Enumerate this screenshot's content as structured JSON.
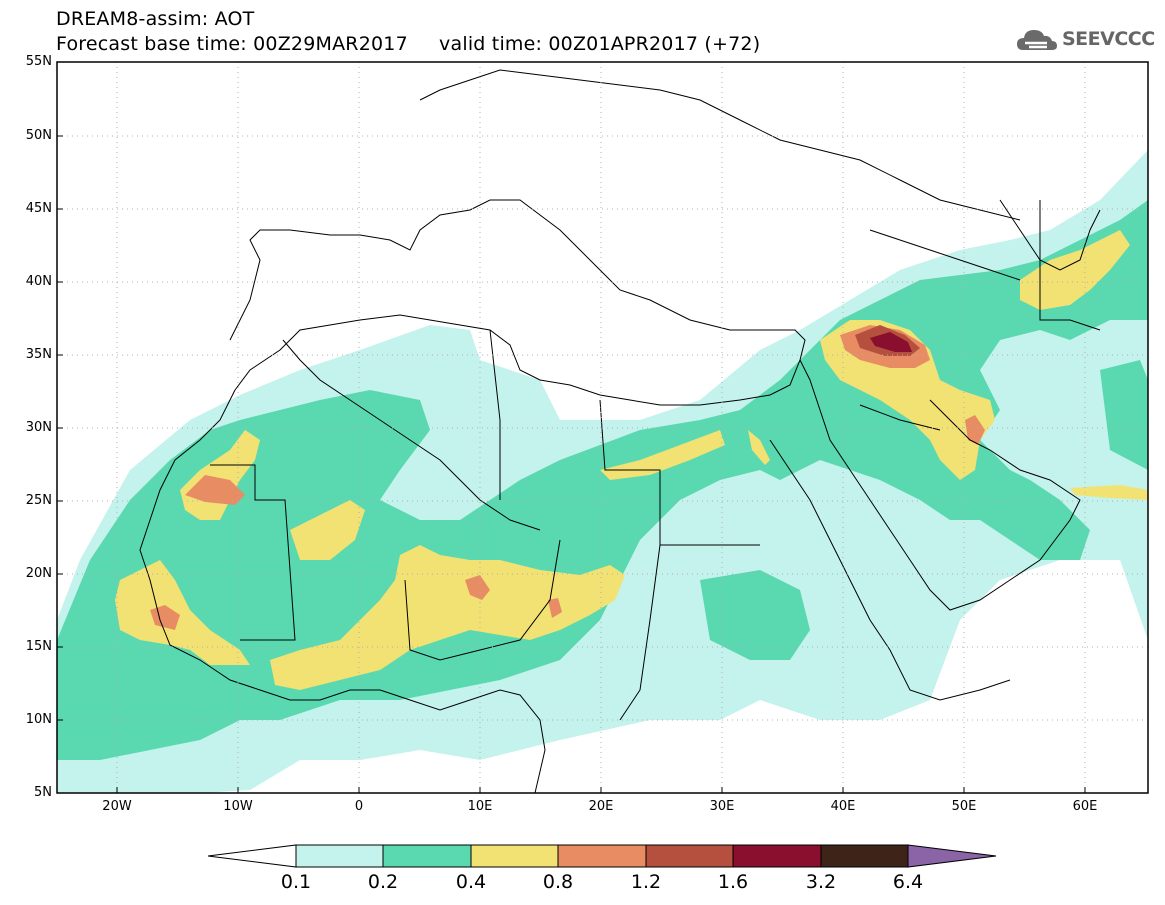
{
  "header": {
    "title": "DREAM8-assim: AOT",
    "subtitle": "Forecast base time: 00Z29MAR2017     valid time: 00Z01APR2017 (+72)"
  },
  "logo": {
    "text": "SEEVCCC",
    "icon": "cloud-icon"
  },
  "map": {
    "lat_labels": [
      "55N",
      "50N",
      "45N",
      "40N",
      "35N",
      "30N",
      "25N",
      "20N",
      "15N",
      "10N",
      "5N"
    ],
    "lon_labels": [
      "20W",
      "10W",
      "0",
      "10E",
      "20E",
      "30E",
      "40E",
      "50E",
      "60E"
    ]
  },
  "colorbar": {
    "levels": [
      "0.1",
      "0.2",
      "0.4",
      "0.8",
      "1.2",
      "1.6",
      "3.2",
      "6.4"
    ],
    "colors": [
      "#ffffff",
      "#c4f2ec",
      "#5ad8b0",
      "#f2e274",
      "#e88c64",
      "#b6503e",
      "#8a0e2e",
      "#3e2418",
      "#8a64a6"
    ]
  },
  "colors": {
    "aot_01_02": "#c4f2ec",
    "aot_02_04": "#5ad8b0",
    "aot_04_08": "#f2e274",
    "aot_08_12": "#e88c64",
    "aot_12_16": "#b6503e",
    "aot_16_32": "#8a0e2e"
  }
}
